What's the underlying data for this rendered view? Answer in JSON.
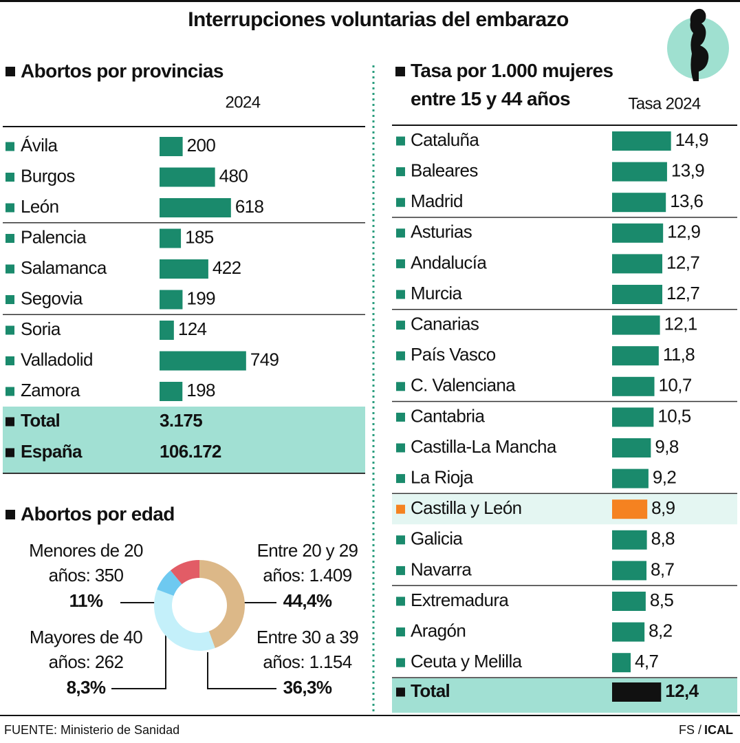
{
  "title": "Interrupciones voluntarias del embarazo",
  "source": "FUENTE: Ministerio de Sanidad",
  "credit_author": "FS /",
  "credit_agency": "ICAL",
  "chart_data": [
    {
      "type": "bar",
      "title": "Abortos por provincias",
      "subtitle": "2024",
      "categories": [
        "Ávila",
        "Burgos",
        "León",
        "Palencia",
        "Salamanca",
        "Segovia",
        "Soria",
        "Valladolid",
        "Zamora"
      ],
      "values": [
        200,
        480,
        618,
        185,
        422,
        199,
        124,
        749,
        198
      ],
      "color": "#1a8a6c",
      "totals": [
        {
          "name": "Total",
          "value": 3175,
          "label": "3.175"
        },
        {
          "name": "España",
          "value": 106172,
          "label": "106.172"
        }
      ]
    },
    {
      "type": "pie",
      "title": "Abortos por edad",
      "categories": [
        "Entre 20 y 29\naños: 1.409",
        "Entre 30 a 39\naños: 1.154",
        "Mayores de 40\naños: 262",
        "Menores de 20\naños: 350"
      ],
      "values": [
        44.4,
        36.3,
        8.3,
        11
      ],
      "value_labels": [
        "44,4%",
        "36,3%",
        "8,3%",
        "11%"
      ],
      "colors": [
        "#dcb888",
        "#c4f0fa",
        "#6ec9f0",
        "#e25c66"
      ]
    },
    {
      "type": "bar",
      "title": "Tasa por 1.000 mujeres entre 15 y 44 años",
      "subtitle": "Tasa 2024",
      "categories": [
        "Cataluña",
        "Baleares",
        "Madrid",
        "Asturias",
        "Andalucía",
        "Murcia",
        "Canarias",
        "País Vasco",
        "C. Valenciana",
        "Cantabria",
        "Castilla-La Mancha",
        "La Rioja",
        "Castilla y León",
        "Galicia",
        "Navarra",
        "Extremadura",
        "Aragón",
        "Ceuta y Melilla"
      ],
      "values": [
        14.9,
        13.9,
        13.6,
        12.9,
        12.7,
        12.7,
        12.1,
        11.8,
        10.7,
        10.5,
        9.8,
        9.2,
        8.9,
        8.8,
        8.7,
        8.5,
        8.2,
        4.7
      ],
      "value_labels": [
        "14,9",
        "13,9",
        "13,6",
        "12,9",
        "12,7",
        "12,7",
        "12,1",
        "11,8",
        "10,7",
        "10,5",
        "9,8",
        "9,2",
        "8,9",
        "8,8",
        "8,7",
        "8,5",
        "8,2",
        "4,7"
      ],
      "color": "#1a8a6c",
      "colors": [
        "#1a8a6c",
        "#1a8a6c",
        "#1a8a6c",
        "#1a8a6c",
        "#1a8a6c",
        "#1a8a6c",
        "#1a8a6c",
        "#1a8a6c",
        "#1a8a6c",
        "#1a8a6c",
        "#1a8a6c",
        "#1a8a6c",
        "#f58220",
        "#1a8a6c",
        "#1a8a6c",
        "#1a8a6c",
        "#1a8a6c",
        "#1a8a6c"
      ],
      "total": {
        "name": "Total",
        "value": 12.4,
        "label": "12,4",
        "color": "#111111"
      }
    }
  ]
}
